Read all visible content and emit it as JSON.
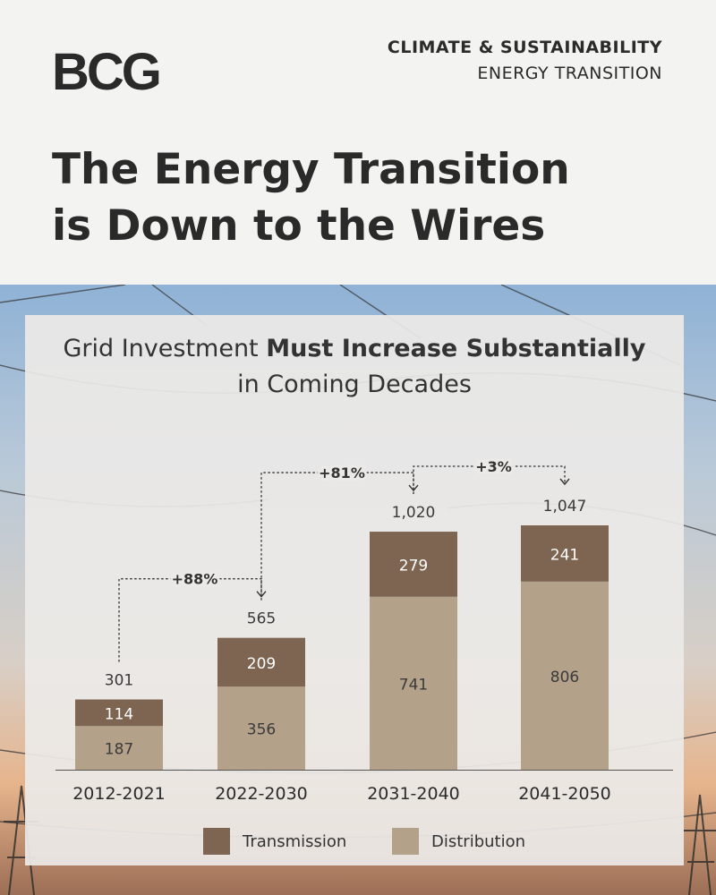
{
  "header": {
    "logo": "BCG",
    "category": "CLIMATE & SUSTAINABILITY",
    "subcategory": "ENERGY TRANSITION",
    "headline_line1": "The Energy Transition",
    "headline_line2": "is Down to the Wires"
  },
  "colors": {
    "transmission": "#7d6552",
    "distribution": "#b3a18a"
  },
  "chart_data": {
    "type": "bar",
    "stacked": true,
    "title_regular": "Grid Investment ",
    "title_bold": "Must Increase Substantially",
    "title_line2": "in Coming Decades",
    "categories": [
      "2012-2021",
      "2022-2030",
      "2031-2040",
      "2041-2050"
    ],
    "series": [
      {
        "name": "Distribution",
        "values": [
          187,
          356,
          741,
          806
        ]
      },
      {
        "name": "Transmission",
        "values": [
          114,
          209,
          279,
          241
        ]
      }
    ],
    "totals": [
      "301",
      "565",
      "1,020",
      "1,047"
    ],
    "changes": [
      {
        "from": 0,
        "to": 1,
        "label": "+88%"
      },
      {
        "from": 1,
        "to": 2,
        "label": "+81%"
      },
      {
        "from": 2,
        "to": 3,
        "label": "+3%"
      }
    ],
    "ylim": [
      0,
      1047
    ],
    "legend": [
      "Transmission",
      "Distribution"
    ],
    "legend_position": "bottom"
  }
}
